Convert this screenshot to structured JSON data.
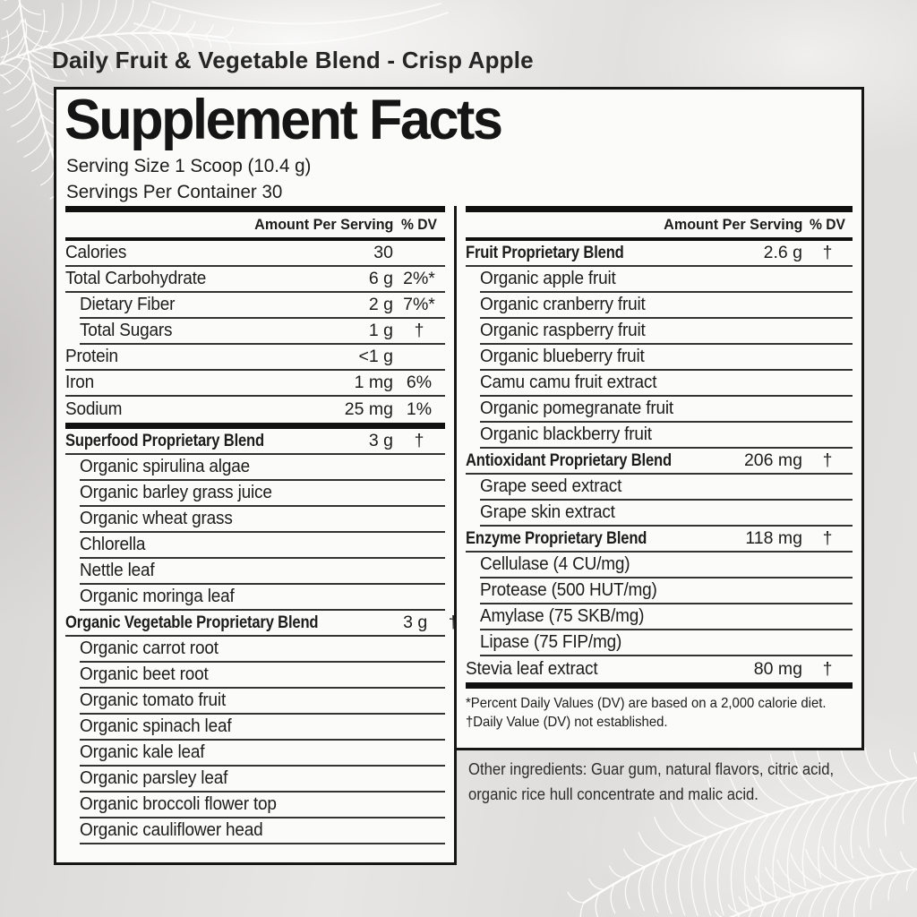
{
  "product_title": "Daily Fruit & Vegetable Blend - Crisp Apple",
  "panel": {
    "title": "Supplement Facts",
    "serving_size": "Serving Size 1 Scoop (10.4 g)",
    "servings_per_container": "Servings Per Container 30"
  },
  "columns": {
    "left": {
      "header": {
        "amount": "Amount Per Serving",
        "dv": "% DV"
      },
      "sections": [
        {
          "rows": [
            {
              "label": "Calories",
              "amount": "30",
              "dv": "",
              "style": "main"
            },
            {
              "label": "Total Carbohydrate",
              "amount": "6 g",
              "dv": "2%*",
              "style": "main"
            },
            {
              "label": "Dietary Fiber",
              "amount": "2 g",
              "dv": "7%*",
              "style": "sub"
            },
            {
              "label": "Total Sugars",
              "amount": "1 g",
              "dv": "†",
              "style": "sub"
            },
            {
              "label": "Protein",
              "amount": "<1 g",
              "dv": "",
              "style": "main"
            },
            {
              "label": "Iron",
              "amount": "1 mg",
              "dv": "6%",
              "style": "main"
            },
            {
              "label": "Sodium",
              "amount": "25 mg",
              "dv": "1%",
              "style": "main"
            }
          ]
        },
        {
          "rows": [
            {
              "label": "Superfood Proprietary Blend",
              "amount": "3 g",
              "dv": "†",
              "style": "blend"
            },
            {
              "label": "Organic spirulina algae",
              "amount": "",
              "dv": "",
              "style": "sub"
            },
            {
              "label": "Organic barley grass juice",
              "amount": "",
              "dv": "",
              "style": "sub"
            },
            {
              "label": "Organic wheat grass",
              "amount": "",
              "dv": "",
              "style": "sub"
            },
            {
              "label": "Chlorella",
              "amount": "",
              "dv": "",
              "style": "sub"
            },
            {
              "label": "Nettle leaf",
              "amount": "",
              "dv": "",
              "style": "sub"
            },
            {
              "label": "Organic moringa leaf",
              "amount": "",
              "dv": "",
              "style": "sub"
            },
            {
              "label": "Organic Vegetable Proprietary Blend",
              "amount": "3 g",
              "dv": "†",
              "style": "blend"
            },
            {
              "label": "Organic carrot root",
              "amount": "",
              "dv": "",
              "style": "sub"
            },
            {
              "label": "Organic beet root",
              "amount": "",
              "dv": "",
              "style": "sub"
            },
            {
              "label": "Organic tomato fruit",
              "amount": "",
              "dv": "",
              "style": "sub"
            },
            {
              "label": "Organic spinach leaf",
              "amount": "",
              "dv": "",
              "style": "sub"
            },
            {
              "label": "Organic kale leaf",
              "amount": "",
              "dv": "",
              "style": "sub"
            },
            {
              "label": "Organic parsley leaf",
              "amount": "",
              "dv": "",
              "style": "sub"
            },
            {
              "label": "Organic broccoli flower top",
              "amount": "",
              "dv": "",
              "style": "sub"
            },
            {
              "label": "Organic cauliflower head",
              "amount": "",
              "dv": "",
              "style": "sub"
            }
          ]
        }
      ]
    },
    "right": {
      "header": {
        "amount": "Amount Per Serving",
        "dv": "% DV"
      },
      "sections": [
        {
          "rows": [
            {
              "label": "Fruit Proprietary Blend",
              "amount": "2.6 g",
              "dv": "†",
              "style": "blend"
            },
            {
              "label": "Organic apple fruit",
              "amount": "",
              "dv": "",
              "style": "sub"
            },
            {
              "label": "Organic cranberry fruit",
              "amount": "",
              "dv": "",
              "style": "sub"
            },
            {
              "label": "Organic raspberry fruit",
              "amount": "",
              "dv": "",
              "style": "sub"
            },
            {
              "label": "Organic blueberry fruit",
              "amount": "",
              "dv": "",
              "style": "sub"
            },
            {
              "label": "Camu camu fruit extract",
              "amount": "",
              "dv": "",
              "style": "sub"
            },
            {
              "label": "Organic pomegranate fruit",
              "amount": "",
              "dv": "",
              "style": "sub"
            },
            {
              "label": "Organic blackberry fruit",
              "amount": "",
              "dv": "",
              "style": "sub"
            },
            {
              "label": "Antioxidant Proprietary Blend",
              "amount": "206 mg",
              "dv": "†",
              "style": "blend"
            },
            {
              "label": "Grape seed extract",
              "amount": "",
              "dv": "",
              "style": "sub"
            },
            {
              "label": "Grape skin extract",
              "amount": "",
              "dv": "",
              "style": "sub"
            },
            {
              "label": "Enzyme Proprietary Blend",
              "amount": "118 mg",
              "dv": "†",
              "style": "blend"
            },
            {
              "label": "Cellulase (4 CU/mg)",
              "amount": "",
              "dv": "",
              "style": "sub"
            },
            {
              "label": "Protease (500 HUT/mg)",
              "amount": "",
              "dv": "",
              "style": "sub"
            },
            {
              "label": "Amylase (75 SKB/mg)",
              "amount": "",
              "dv": "",
              "style": "sub"
            },
            {
              "label": "Lipase (75 FIP/mg)",
              "amount": "",
              "dv": "",
              "style": "sub"
            },
            {
              "label": "Stevia leaf extract",
              "amount": "80 mg",
              "dv": "†",
              "style": "main"
            }
          ]
        }
      ],
      "footnotes": [
        "*Percent Daily Values (DV) are based on a 2,000 calorie diet.",
        "†Daily Value (DV) not established."
      ]
    }
  },
  "other_ingredients": "Other ingredients: Guar gum, natural flavors, citric acid, organic rice hull concentrate and malic acid.",
  "colors": {
    "text": "#1c1c1c",
    "border": "#161616",
    "panel_bg": "#fbfbf9",
    "page_bg": "#dedcda",
    "decoration": "#ffffff"
  }
}
